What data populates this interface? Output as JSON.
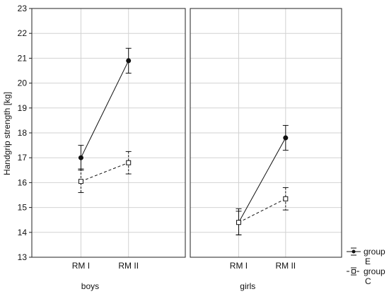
{
  "chart_data": {
    "type": "line",
    "ylabel": "Handgrip strength [kg]",
    "ylim": [
      13,
      23
    ],
    "yticks": [
      13,
      14,
      15,
      16,
      17,
      18,
      19,
      20,
      21,
      22,
      23
    ],
    "categories": [
      "RM I",
      "RM II"
    ],
    "grid": true,
    "legend_position": "bottom-right",
    "panels": [
      {
        "name": "boys",
        "series": [
          {
            "name": "group E",
            "style": "solid",
            "marker": "filled-circle",
            "values": [
              17.0,
              20.9
            ],
            "lower": [
              16.5,
              20.4
            ],
            "upper": [
              17.5,
              21.4
            ]
          },
          {
            "name": "group C",
            "style": "dashed",
            "marker": "open-square",
            "values": [
              16.05,
              16.8
            ],
            "lower": [
              15.6,
              16.35
            ],
            "upper": [
              16.55,
              17.25
            ]
          }
        ]
      },
      {
        "name": "girls",
        "series": [
          {
            "name": "group E",
            "style": "solid",
            "marker": "filled-circle",
            "values": [
              14.4,
              17.8
            ],
            "lower": [
              13.9,
              17.3
            ],
            "upper": [
              14.95,
              18.3
            ]
          },
          {
            "name": "group C",
            "style": "dashed",
            "marker": "open-square",
            "values": [
              14.4,
              15.35
            ],
            "lower": [
              13.9,
              14.9
            ],
            "upper": [
              14.85,
              15.8
            ]
          }
        ]
      }
    ],
    "legend": [
      {
        "line1": "group",
        "line2": "E",
        "style": "solid",
        "marker": "filled-circle"
      },
      {
        "line1": "group",
        "line2": "C",
        "style": "dashed",
        "marker": "open-square"
      }
    ]
  }
}
